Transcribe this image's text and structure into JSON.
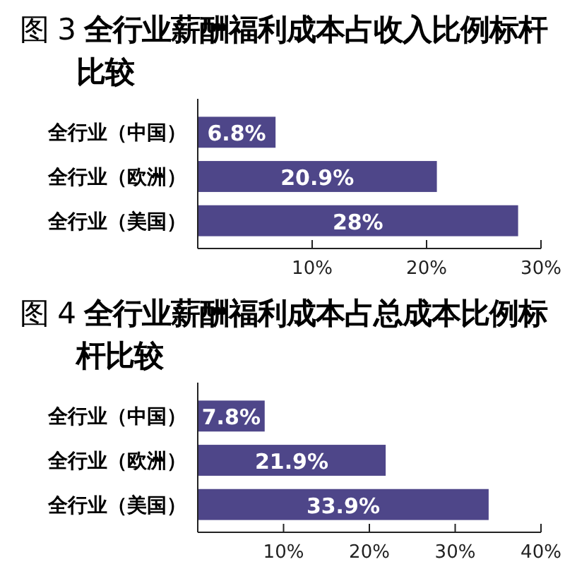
{
  "chart_data": [
    {
      "type": "bar",
      "orientation": "horizontal",
      "title": "图 3 **全行业薪酬福利成本占收入比例标杆比较**",
      "categories": [
        "全行业（中国）",
        "全行业（欧洲）",
        "全行业（美国）"
      ],
      "values": [
        6.8,
        20.9,
        28
      ],
      "value_labels": [
        "6.8%",
        "20.9%",
        "28%"
      ],
      "color": "#4e4689",
      "xlim": [
        0,
        30
      ],
      "xticks": [
        {
          "value": 10,
          "label": "10%"
        },
        {
          "value": 20,
          "label": "20%"
        },
        {
          "value": 30,
          "label": "30%"
        }
      ]
    },
    {
      "type": "bar",
      "orientation": "horizontal",
      "title": "图 4 **全行业薪酬福利成本占总成本比例标杆比较**",
      "categories": [
        "全行业（中国）",
        "全行业（欧洲）",
        "全行业（美国）"
      ],
      "values": [
        7.8,
        21.9,
        33.9
      ],
      "value_labels": [
        "7.8%",
        "21.9%",
        "33.9%"
      ],
      "color": "#4e4689",
      "xlim": [
        0,
        40
      ],
      "xticks": [
        {
          "value": 10,
          "label": "10%"
        },
        {
          "value": 20,
          "label": "20%"
        },
        {
          "value": 30,
          "label": "30%"
        },
        {
          "value": 40,
          "label": "40%"
        }
      ]
    }
  ]
}
